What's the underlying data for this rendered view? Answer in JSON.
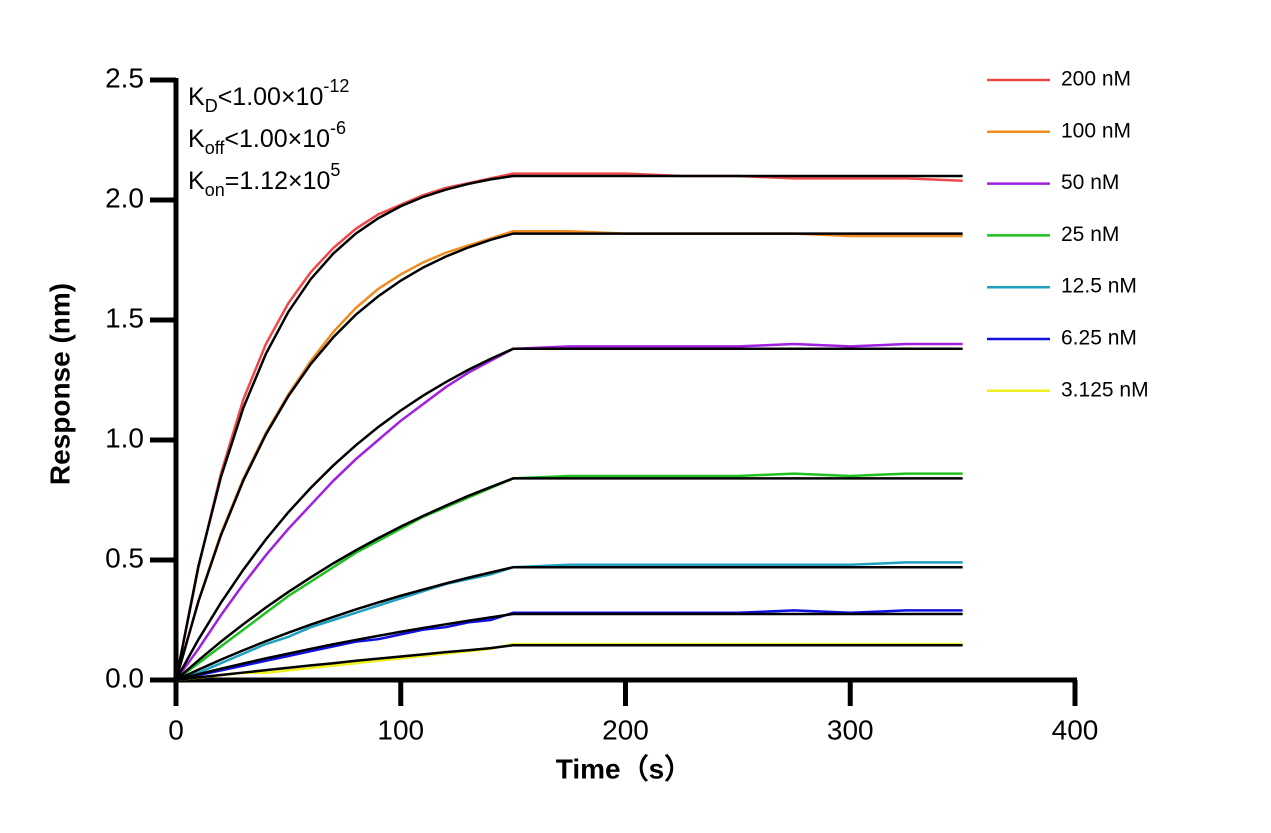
{
  "chart_data": {
    "type": "line",
    "xlabel": "Time（s）",
    "ylabel": "Response (nm)",
    "annotations": [
      {
        "main": "K",
        "sub": "D",
        "text": "<1.00×10",
        "sup": "-12"
      },
      {
        "main": "K",
        "sub": "off",
        "text": "<1.00×10",
        "sup": "-6"
      },
      {
        "main": "K",
        "sub": "on",
        "text": "=1.12×10",
        "sup": "5"
      }
    ],
    "x": [
      0,
      10,
      20,
      30,
      40,
      50,
      60,
      70,
      80,
      90,
      100,
      110,
      120,
      130,
      140,
      150,
      175,
      200,
      225,
      250,
      275,
      300,
      325,
      350
    ],
    "xlim": [
      0,
      400
    ],
    "xticks": [
      0,
      100,
      200,
      300,
      400
    ],
    "ylim": [
      0,
      2.5
    ],
    "yticks": [
      {
        "value": 0,
        "label": "0.0"
      },
      0.5,
      {
        "value": 1,
        "label": "1.0"
      },
      1.5,
      {
        "value": 2,
        "label": "2.0"
      },
      2.5
    ],
    "series": [
      {
        "name": "200 nM",
        "color": "#f04848",
        "values": [
          0,
          0.47,
          0.86,
          1.17,
          1.4,
          1.57,
          1.7,
          1.8,
          1.88,
          1.94,
          1.98,
          2.02,
          2.05,
          2.07,
          2.09,
          2.11,
          2.11,
          2.11,
          2.1,
          2.1,
          2.09,
          2.09,
          2.09,
          2.08
        ]
      },
      {
        "name": "100 nM",
        "color": "#f08c1e",
        "values": [
          0,
          0.33,
          0.61,
          0.84,
          1.03,
          1.19,
          1.33,
          1.45,
          1.55,
          1.63,
          1.69,
          1.74,
          1.78,
          1.81,
          1.84,
          1.87,
          1.87,
          1.86,
          1.86,
          1.86,
          1.86,
          1.85,
          1.85,
          1.85
        ]
      },
      {
        "name": "50 nM",
        "color": "#a020e0",
        "values": [
          0,
          0.13,
          0.27,
          0.4,
          0.52,
          0.63,
          0.73,
          0.83,
          0.92,
          1.0,
          1.08,
          1.15,
          1.22,
          1.28,
          1.33,
          1.38,
          1.39,
          1.39,
          1.39,
          1.39,
          1.4,
          1.39,
          1.4,
          1.4
        ]
      },
      {
        "name": "25 nM",
        "color": "#20c020",
        "values": [
          0,
          0.07,
          0.14,
          0.21,
          0.28,
          0.35,
          0.41,
          0.47,
          0.53,
          0.58,
          0.63,
          0.68,
          0.72,
          0.76,
          0.8,
          0.84,
          0.85,
          0.85,
          0.85,
          0.85,
          0.86,
          0.85,
          0.86,
          0.86
        ]
      },
      {
        "name": "12.5 nM",
        "color": "#20a0c0",
        "values": [
          0,
          0.03,
          0.07,
          0.11,
          0.15,
          0.18,
          0.22,
          0.25,
          0.28,
          0.31,
          0.34,
          0.37,
          0.4,
          0.42,
          0.44,
          0.47,
          0.48,
          0.48,
          0.48,
          0.48,
          0.48,
          0.48,
          0.49,
          0.49
        ]
      },
      {
        "name": "6.25 nM",
        "color": "#1010e0",
        "values": [
          0,
          0.02,
          0.04,
          0.06,
          0.08,
          0.1,
          0.12,
          0.14,
          0.16,
          0.17,
          0.19,
          0.21,
          0.22,
          0.24,
          0.25,
          0.28,
          0.28,
          0.28,
          0.28,
          0.28,
          0.29,
          0.28,
          0.29,
          0.29
        ]
      },
      {
        "name": "3.125 nM",
        "color": "#f0f020",
        "values": [
          0,
          0.01,
          0.02,
          0.03,
          0.03,
          0.04,
          0.05,
          0.06,
          0.07,
          0.08,
          0.09,
          0.1,
          0.11,
          0.12,
          0.13,
          0.15,
          0.15,
          0.15,
          0.15,
          0.15,
          0.15,
          0.15,
          0.15,
          0.15
        ]
      }
    ],
    "fits": [
      {
        "color": "#000000",
        "values": [
          0,
          0.476,
          0.846,
          1.135,
          1.359,
          1.534,
          1.671,
          1.777,
          1.86,
          1.924,
          1.974,
          2.013,
          2.043,
          2.067,
          2.086,
          2.1,
          2.1,
          2.1,
          2.1,
          2.1,
          2.1,
          2.1,
          2.1,
          2.1
        ]
      },
      {
        "color": "#000000",
        "values": [
          0,
          0.328,
          0.603,
          0.832,
          1.023,
          1.183,
          1.317,
          1.428,
          1.522,
          1.599,
          1.664,
          1.719,
          1.764,
          1.802,
          1.834,
          1.86,
          1.86,
          1.86,
          1.86,
          1.86,
          1.86,
          1.86,
          1.86,
          1.86
        ]
      },
      {
        "color": "#000000",
        "values": [
          0,
          0.169,
          0.322,
          0.46,
          0.586,
          0.699,
          0.801,
          0.894,
          0.978,
          1.054,
          1.123,
          1.185,
          1.241,
          1.292,
          1.338,
          1.38,
          1.38,
          1.38,
          1.38,
          1.38,
          1.38,
          1.38,
          1.38,
          1.38
        ]
      },
      {
        "color": "#000000",
        "values": [
          0,
          0.082,
          0.16,
          0.233,
          0.302,
          0.367,
          0.428,
          0.486,
          0.54,
          0.591,
          0.639,
          0.684,
          0.726,
          0.767,
          0.804,
          0.84,
          0.84,
          0.84,
          0.84,
          0.84,
          0.84,
          0.84,
          0.84,
          0.84
        ]
      },
      {
        "color": "#000000",
        "values": [
          0,
          0.043,
          0.085,
          0.124,
          0.162,
          0.197,
          0.231,
          0.263,
          0.294,
          0.323,
          0.351,
          0.377,
          0.402,
          0.426,
          0.448,
          0.47,
          0.47,
          0.47,
          0.47,
          0.47,
          0.47,
          0.47,
          0.47,
          0.47
        ]
      },
      {
        "color": "#000000",
        "values": [
          0,
          0.024,
          0.047,
          0.069,
          0.09,
          0.11,
          0.13,
          0.149,
          0.167,
          0.184,
          0.201,
          0.217,
          0.232,
          0.247,
          0.261,
          0.275,
          0.275,
          0.275,
          0.275,
          0.275,
          0.275,
          0.275,
          0.275,
          0.275
        ]
      },
      {
        "color": "#000000",
        "values": [
          0,
          0.011,
          0.021,
          0.031,
          0.041,
          0.051,
          0.061,
          0.07,
          0.08,
          0.089,
          0.098,
          0.107,
          0.116,
          0.124,
          0.133,
          0.145,
          0.145,
          0.145,
          0.145,
          0.145,
          0.145,
          0.145,
          0.145,
          0.145
        ]
      }
    ],
    "legend": "right"
  }
}
